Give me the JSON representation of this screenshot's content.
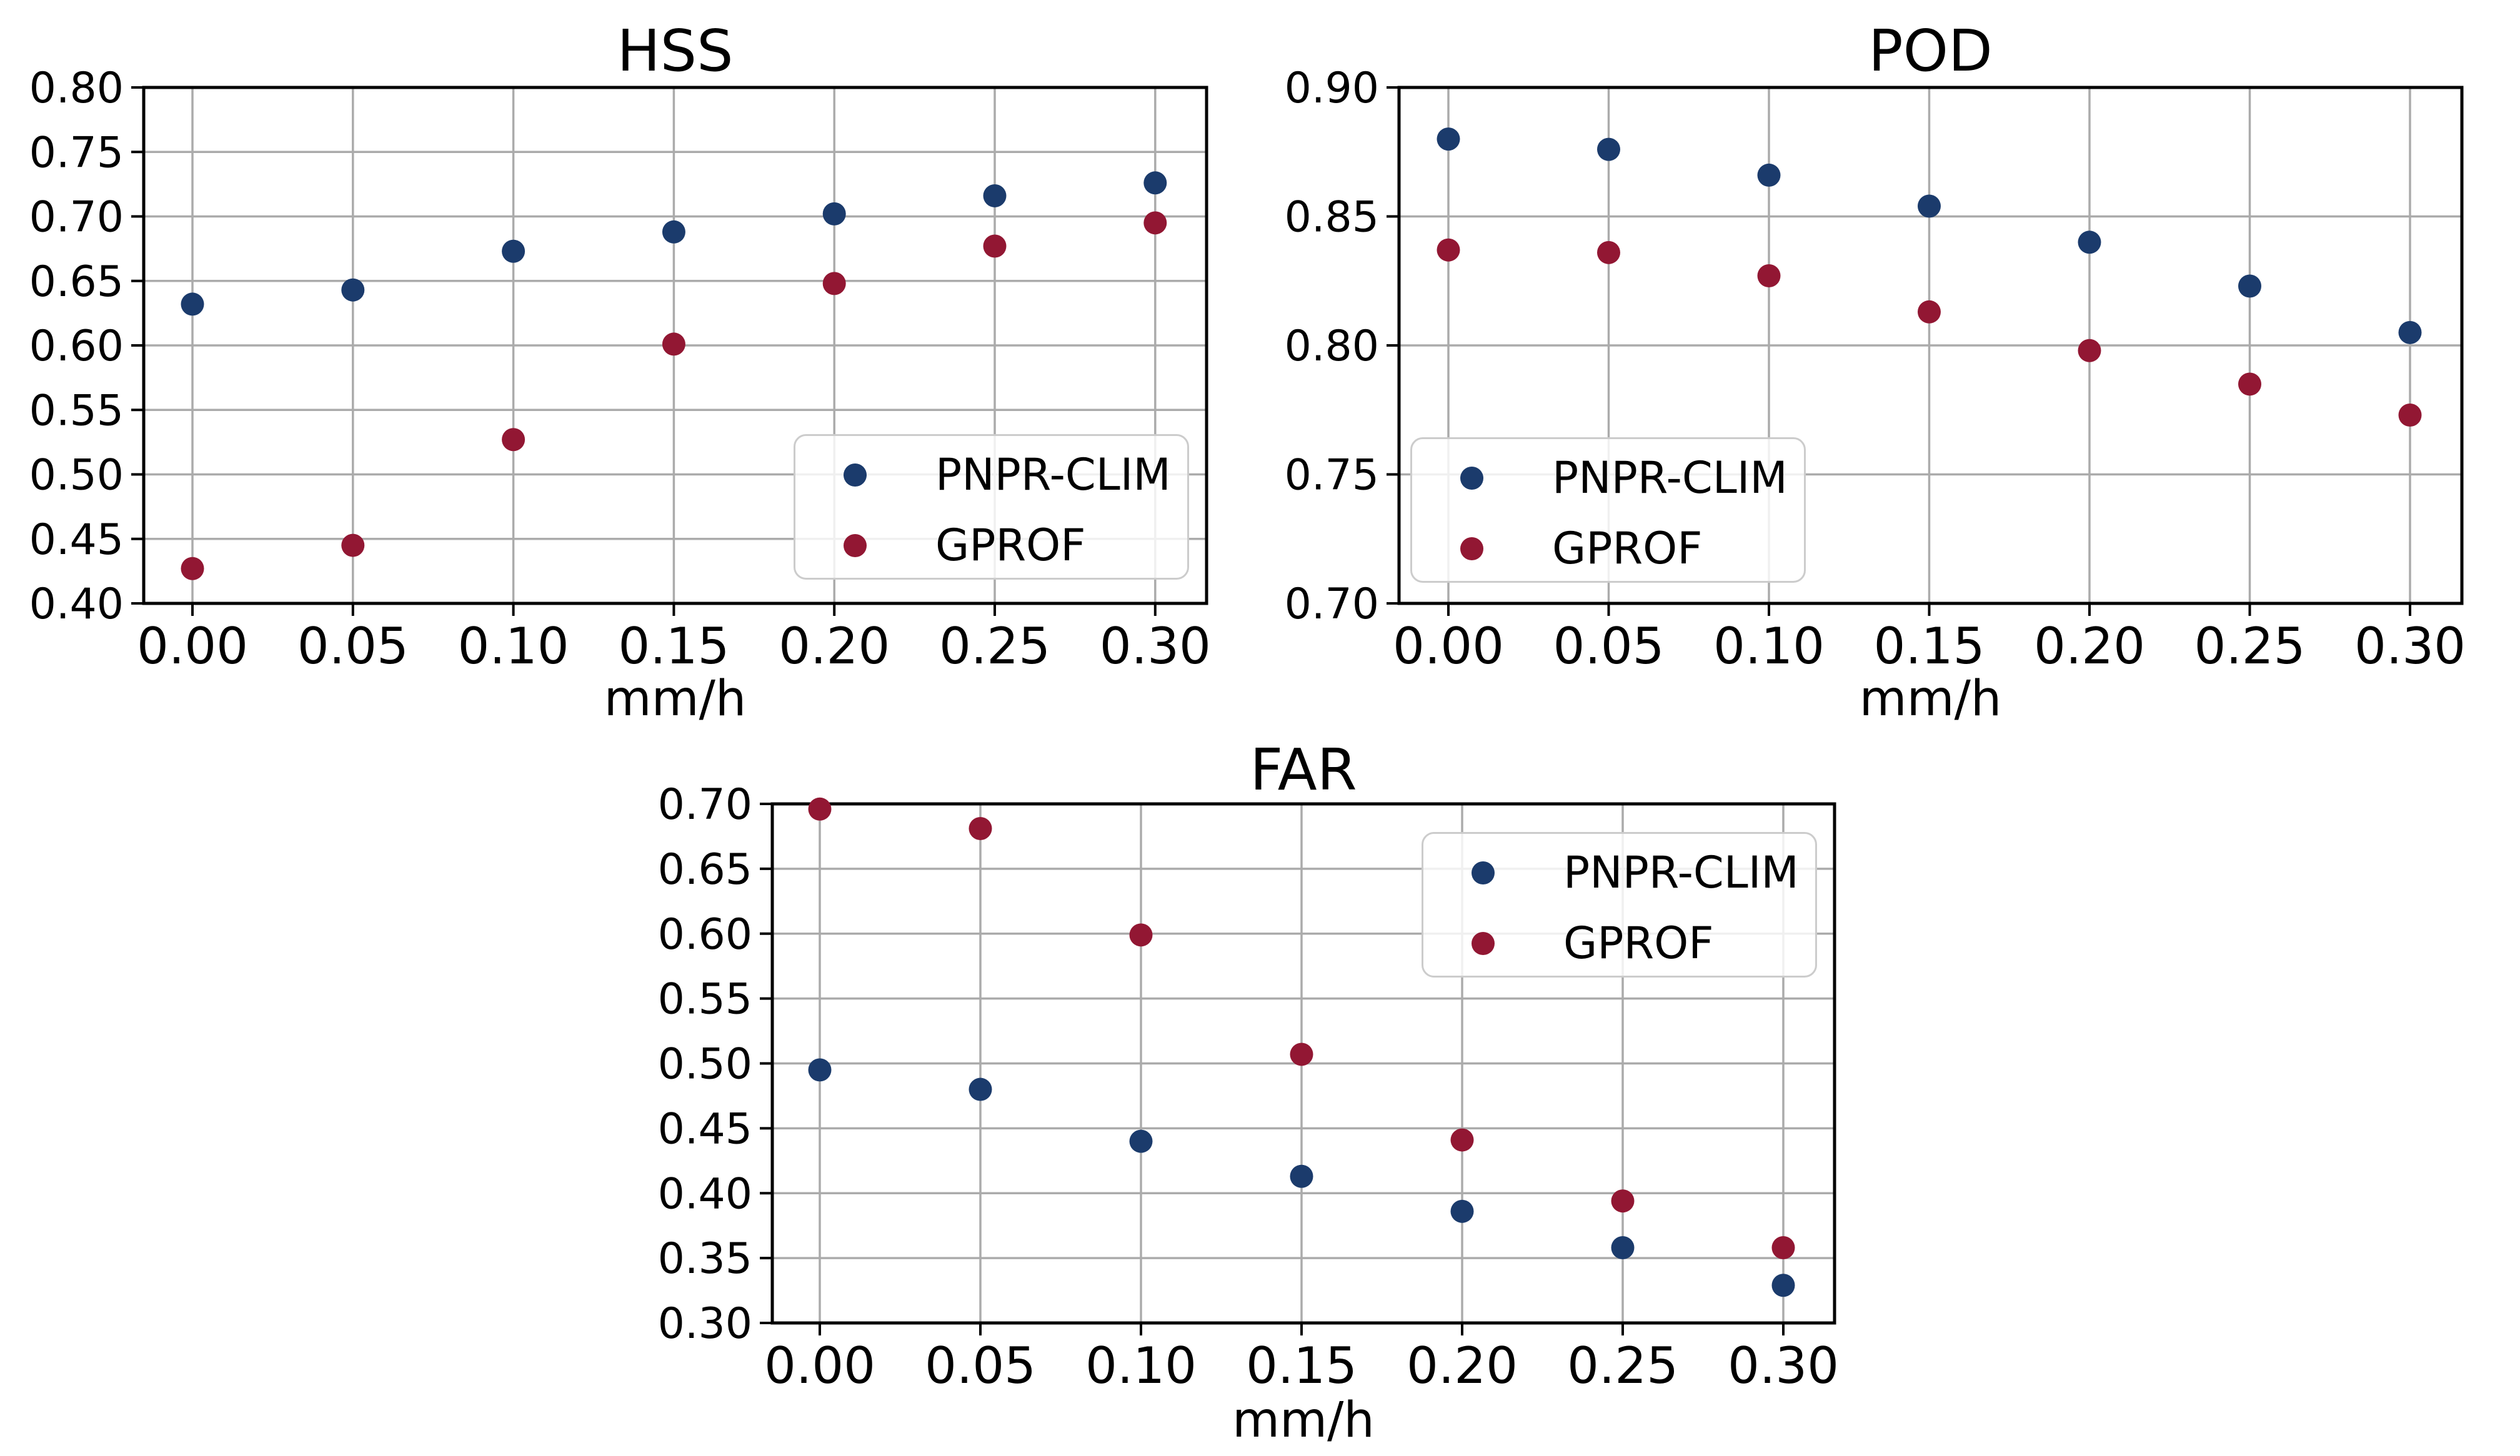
{
  "figure": {
    "background": "#ffffff",
    "text_color": "#000000",
    "grid_color": "#ababab"
  },
  "chart_data": [
    {
      "key": "hss",
      "type": "scatter",
      "title": "HSS",
      "xlabel": "mm/h",
      "x": [
        0.0,
        0.05,
        0.1,
        0.15,
        0.2,
        0.25,
        0.3
      ],
      "xticks": [
        "0.00",
        "0.05",
        "0.10",
        "0.15",
        "0.20",
        "0.25",
        "0.30"
      ],
      "yticks": [
        "0.40",
        "0.45",
        "0.50",
        "0.55",
        "0.60",
        "0.65",
        "0.70",
        "0.75",
        "0.80"
      ],
      "ylim": [
        0.4,
        0.8
      ],
      "grid": true,
      "legend_position": "lower right",
      "series": [
        {
          "name": "PNPR-CLIM",
          "color": "#1b3b6c",
          "values": [
            0.632,
            0.643,
            0.673,
            0.688,
            0.702,
            0.716,
            0.726
          ]
        },
        {
          "name": "GPROF",
          "color": "#921733",
          "values": [
            0.427,
            0.445,
            0.527,
            0.601,
            0.648,
            0.677,
            0.695
          ]
        }
      ]
    },
    {
      "key": "pod",
      "type": "scatter",
      "title": "POD",
      "xlabel": "mm/h",
      "x": [
        0.0,
        0.05,
        0.1,
        0.15,
        0.2,
        0.25,
        0.3
      ],
      "xticks": [
        "0.00",
        "0.05",
        "0.10",
        "0.15",
        "0.20",
        "0.25",
        "0.30"
      ],
      "yticks": [
        "0.70",
        "0.75",
        "0.80",
        "0.85",
        "0.90"
      ],
      "ylim": [
        0.7,
        0.9
      ],
      "grid": true,
      "legend_position": "lower left",
      "series": [
        {
          "name": "PNPR-CLIM",
          "color": "#1b3b6c",
          "values": [
            0.88,
            0.876,
            0.866,
            0.854,
            0.84,
            0.823,
            0.805
          ]
        },
        {
          "name": "GPROF",
          "color": "#921733",
          "values": [
            0.837,
            0.836,
            0.827,
            0.813,
            0.798,
            0.785,
            0.773
          ]
        }
      ]
    },
    {
      "key": "far",
      "type": "scatter",
      "title": "FAR",
      "xlabel": "mm/h",
      "x": [
        0.0,
        0.05,
        0.1,
        0.15,
        0.2,
        0.25,
        0.3
      ],
      "xticks": [
        "0.00",
        "0.05",
        "0.10",
        "0.15",
        "0.20",
        "0.25",
        "0.30"
      ],
      "yticks": [
        "0.30",
        "0.35",
        "0.40",
        "0.45",
        "0.50",
        "0.55",
        "0.60",
        "0.65",
        "0.70"
      ],
      "ylim": [
        0.3,
        0.7
      ],
      "grid": true,
      "legend_position": "upper right",
      "series": [
        {
          "name": "PNPR-CLIM",
          "color": "#1b3b6c",
          "values": [
            0.495,
            0.48,
            0.44,
            0.413,
            0.386,
            0.358,
            0.329
          ]
        },
        {
          "name": "GPROF",
          "color": "#921733",
          "values": [
            0.696,
            0.681,
            0.599,
            0.507,
            0.441,
            0.394,
            0.358
          ]
        }
      ]
    }
  ]
}
